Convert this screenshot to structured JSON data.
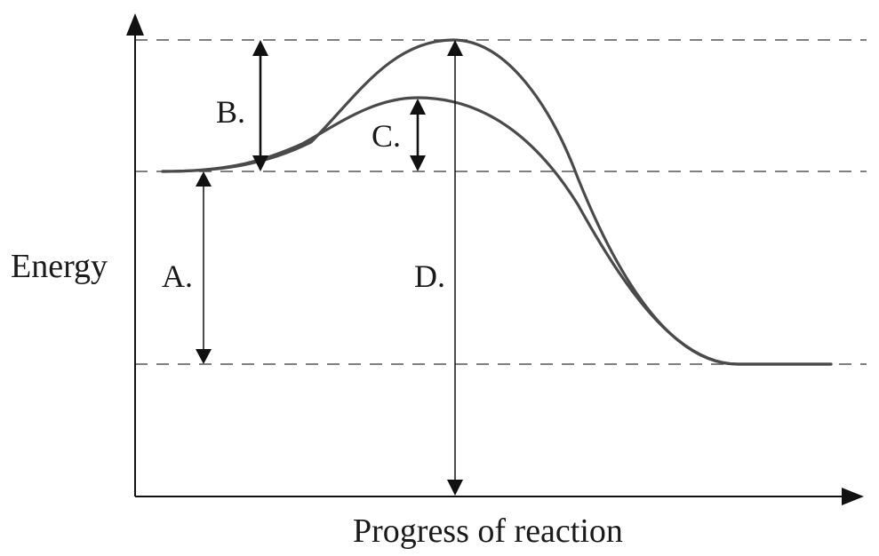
{
  "axes": {
    "x_label": "Progress of reaction",
    "y_label": "Energy"
  },
  "markers": {
    "a": "A.",
    "b": "B.",
    "c": "C.",
    "d": "D."
  },
  "colors": {
    "curve": "#4a4a4a",
    "axis": "#111111",
    "dashed_line": "#555555"
  }
}
